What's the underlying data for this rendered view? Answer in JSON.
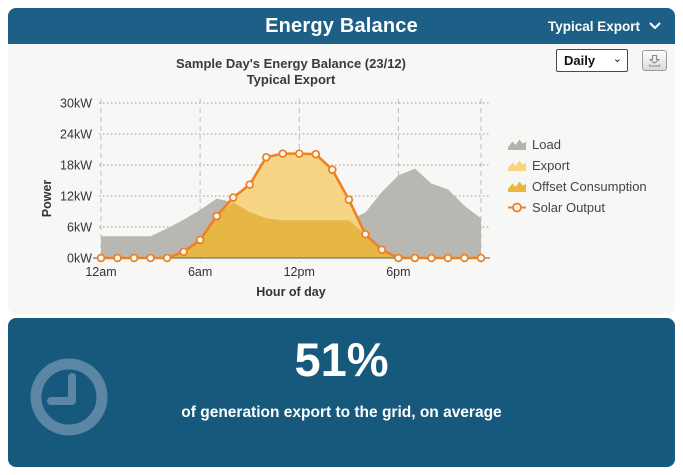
{
  "header": {
    "title": "Energy Balance",
    "view_mode": "Typical Export"
  },
  "controls": {
    "period_value": "Daily"
  },
  "chart_data": {
    "type": "area",
    "title": "Sample Day's Energy Balance (23/12)",
    "subtitle": "Typical Export",
    "xlabel": "Hour of day",
    "ylabel": "Power",
    "ylim": [
      0,
      30
    ],
    "ytick_interval": 6,
    "ytick_suffix": "kW",
    "xticks": [
      {
        "hour": 0,
        "label": "12am"
      },
      {
        "hour": 6,
        "label": "6am"
      },
      {
        "hour": 12,
        "label": "12pm"
      },
      {
        "hour": 18,
        "label": "6pm"
      }
    ],
    "grid_hours": [
      0,
      6,
      12,
      18,
      23
    ],
    "hours": [
      0,
      1,
      2,
      3,
      4,
      5,
      6,
      7,
      8,
      9,
      10,
      11,
      12,
      13,
      14,
      15,
      16,
      17,
      18,
      19,
      20,
      21,
      22,
      23
    ],
    "series": [
      {
        "name": "Load",
        "type": "area",
        "color": "#b5b3ae",
        "values": [
          4.2,
          4.2,
          4.2,
          4.2,
          5.7,
          7.4,
          9.3,
          11.5,
          10.8,
          8.9,
          7.7,
          7.3,
          7.3,
          7.3,
          7.3,
          7.3,
          8.8,
          12.8,
          16.0,
          17.3,
          14.4,
          13.3,
          10.1,
          7.7
        ]
      },
      {
        "name": "Export",
        "type": "area",
        "color": "#f6d480",
        "rule": "solar_output - offset_consumption"
      },
      {
        "name": "Offset Consumption",
        "type": "area",
        "color": "#e9b73e",
        "rule": "min(load, solar_output)"
      },
      {
        "name": "Solar Output",
        "type": "line",
        "color": "#ee8122",
        "values": [
          0,
          0,
          0,
          0,
          0,
          1.2,
          3.5,
          8.1,
          11.7,
          14.2,
          19.5,
          20.2,
          20.2,
          20.1,
          17.1,
          11.3,
          4.6,
          1.6,
          0,
          0,
          0,
          0,
          0,
          0
        ]
      }
    ],
    "legend_position": "right",
    "grid": true
  },
  "stats": {
    "value": "51%",
    "caption": "of generation export to the grid, on average"
  },
  "colors": {
    "header_bg": "#1d5f87",
    "panel_bg": "#17597d",
    "chart_bg": "#f7f7f5",
    "solar_orange": "#ee8122",
    "clock_icon": "#5b87a5",
    "grid_line": "#9b9b9b",
    "axis_line": "#777777"
  }
}
